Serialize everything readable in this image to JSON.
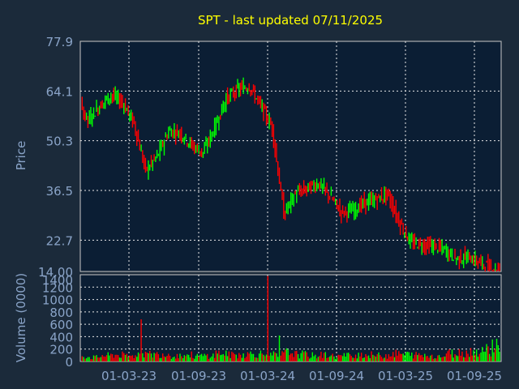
{
  "chart_data": [
    {
      "type": "candlestick",
      "title": "SPT - last updated 07/11/2025",
      "ylabel": "Price",
      "yticks": [
        "77.9",
        "64.1",
        "50.3",
        "36.5",
        "22.7",
        "14.00"
      ],
      "ylim": [
        14.0,
        77.9
      ],
      "xticks": [
        "01-03-23",
        "01-09-23",
        "01-03-24",
        "01-09-24",
        "01-03-25",
        "01-09-25"
      ],
      "grid": true,
      "colors": {
        "up": "#00ff00",
        "down": "#ff0000"
      },
      "x": [
        "2022-09",
        "2022-10",
        "2022-11",
        "2022-12",
        "2023-01",
        "2023-02",
        "2023-03",
        "2023-04",
        "2023-05",
        "2023-06",
        "2023-07",
        "2023-08",
        "2023-09",
        "2023-10",
        "2023-11",
        "2023-12",
        "2024-01",
        "2024-02",
        "2024-03",
        "2024-04",
        "2024-05",
        "2024-06",
        "2024-07",
        "2024-08",
        "2024-09",
        "2024-10",
        "2024-11",
        "2024-12",
        "2025-01",
        "2025-02",
        "2025-03",
        "2025-04",
        "2025-05",
        "2025-06",
        "2025-07",
        "2025-08",
        "2025-09",
        "2025-10",
        "2025-11"
      ],
      "close": [
        57.5,
        62.0,
        56.0,
        60.0,
        63.0,
        61.0,
        55.0,
        42.0,
        46.0,
        53.0,
        52.5,
        49.0,
        47.0,
        54.0,
        62.0,
        64.5,
        65.5,
        60.0,
        54.0,
        30.0,
        35.5,
        37.0,
        38.5,
        35.0,
        30.5,
        31.0,
        33.0,
        34.0,
        35.5,
        28.0,
        22.0,
        21.5,
        21.0,
        20.0,
        17.5,
        18.0,
        16.5,
        15.0,
        14.5
      ]
    },
    {
      "type": "bar",
      "ylabel": "Volume (0000)",
      "yticks": [
        "1400",
        "1200",
        "1000",
        "800",
        "600",
        "400",
        "200",
        "0"
      ],
      "ylim": [
        0,
        1400
      ],
      "xticks": [
        "01-03-23",
        "01-09-23",
        "01-03-24",
        "01-09-24",
        "01-03-25",
        "01-09-25"
      ],
      "grid": true,
      "x": [
        "2022-09",
        "2022-10",
        "2022-11",
        "2022-12",
        "2023-01",
        "2023-02",
        "2023-03",
        "2023-04",
        "2023-05",
        "2023-06",
        "2023-07",
        "2023-08",
        "2023-09",
        "2023-10",
        "2023-11",
        "2023-12",
        "2024-01",
        "2024-02",
        "2024-03",
        "2024-04",
        "2024-05",
        "2024-06",
        "2024-07",
        "2024-08",
        "2024-09",
        "2024-10",
        "2024-11",
        "2024-12",
        "2025-01",
        "2025-02",
        "2025-03",
        "2025-04",
        "2025-05",
        "2025-06",
        "2025-07",
        "2025-08",
        "2025-09",
        "2025-10",
        "2025-11"
      ],
      "values": [
        120,
        80,
        90,
        70,
        100,
        110,
        90,
        680,
        120,
        130,
        100,
        110,
        90,
        100,
        140,
        110,
        120,
        130,
        1380,
        420,
        150,
        120,
        100,
        110,
        90,
        100,
        120,
        110,
        100,
        130,
        120,
        110,
        100,
        90,
        140,
        150,
        170,
        200,
        280
      ]
    }
  ]
}
